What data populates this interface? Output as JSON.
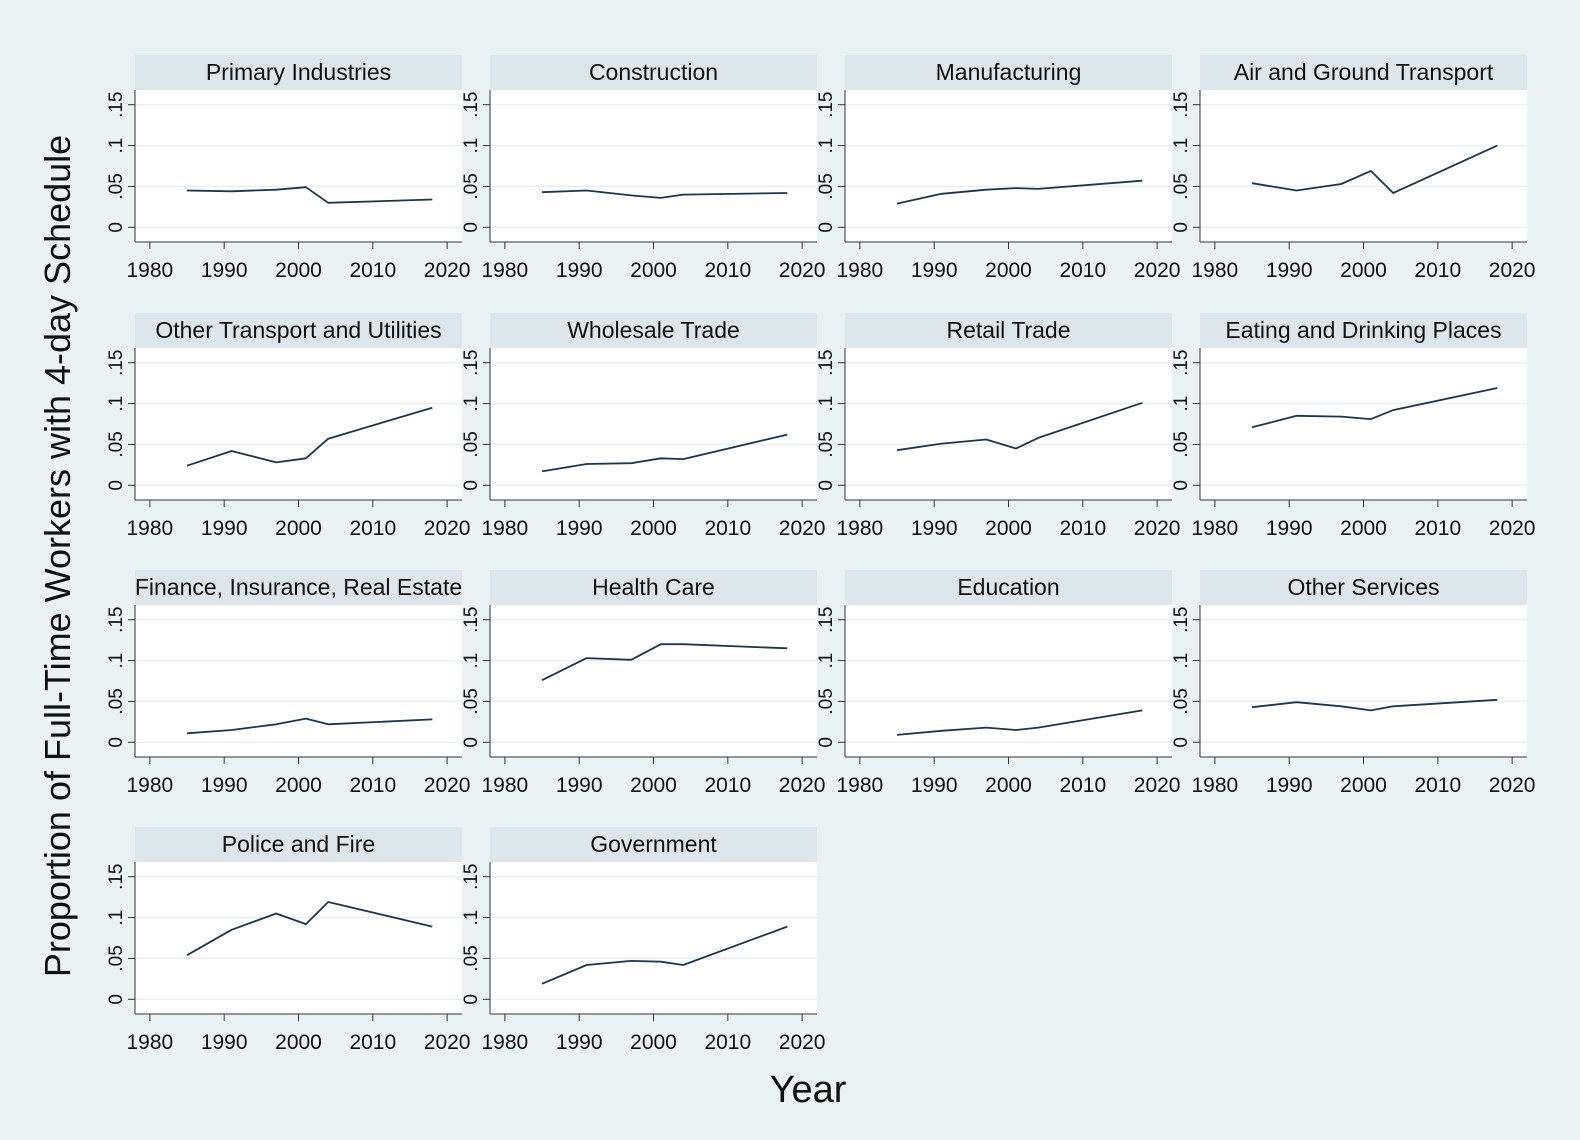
{
  "chart_data": {
    "type": "line",
    "xlabel": "Year",
    "ylabel": "Proportion of Full-Time Workers with 4-day Schedule",
    "xlim": [
      1978,
      2022
    ],
    "ylim": [
      -0.018,
      0.168
    ],
    "xticks": [
      1980,
      1990,
      2000,
      2010,
      2020
    ],
    "yticks": [
      0,
      0.05,
      0.1,
      0.15
    ],
    "ytick_labels": [
      "0",
      ".05",
      ".1",
      ".15"
    ],
    "grid": true,
    "colors": {
      "background": "#eaf2f3",
      "panel": "#ffffff",
      "strip": "#dde6ea",
      "line": "#1a3651",
      "grid": "#e9eef1",
      "axis": "#333333"
    },
    "x": [
      1985,
      1991,
      1997,
      2001,
      2004,
      2018
    ],
    "panels": [
      {
        "name": "Primary Industries",
        "values": [
          0.045,
          0.044,
          0.046,
          0.049,
          0.03,
          0.034
        ]
      },
      {
        "name": "Construction",
        "values": [
          0.043,
          0.045,
          0.039,
          0.036,
          0.04,
          0.042
        ]
      },
      {
        "name": "Manufacturing",
        "values": [
          0.029,
          0.041,
          0.046,
          0.048,
          0.047,
          0.057
        ]
      },
      {
        "name": "Air and Ground Transport",
        "values": [
          0.054,
          0.045,
          0.053,
          0.069,
          0.042,
          0.1
        ]
      },
      {
        "name": "Other Transport and Utilities",
        "values": [
          0.024,
          0.042,
          0.028,
          0.033,
          0.057,
          0.095
        ]
      },
      {
        "name": "Wholesale Trade",
        "values": [
          0.017,
          0.026,
          0.027,
          0.033,
          0.032,
          0.062
        ]
      },
      {
        "name": "Retail Trade",
        "values": [
          0.043,
          0.051,
          0.056,
          0.045,
          0.058,
          0.101
        ]
      },
      {
        "name": "Eating and Drinking Places",
        "values": [
          0.071,
          0.085,
          0.084,
          0.081,
          0.092,
          0.119
        ]
      },
      {
        "name": "Finance, Insurance, Real Estate",
        "values": [
          0.011,
          0.015,
          0.022,
          0.029,
          0.022,
          0.028
        ]
      },
      {
        "name": "Health Care",
        "values": [
          0.076,
          0.103,
          0.101,
          0.12,
          0.12,
          0.115
        ]
      },
      {
        "name": "Education",
        "values": [
          0.009,
          0.014,
          0.018,
          0.015,
          0.018,
          0.039
        ]
      },
      {
        "name": "Other Services",
        "values": [
          0.043,
          0.049,
          0.044,
          0.039,
          0.044,
          0.052
        ]
      },
      {
        "name": "Police and Fire",
        "values": [
          0.054,
          0.085,
          0.105,
          0.092,
          0.119,
          0.089
        ]
      },
      {
        "name": "Government",
        "values": [
          0.019,
          0.042,
          0.047,
          0.046,
          0.042,
          0.089
        ]
      }
    ]
  }
}
